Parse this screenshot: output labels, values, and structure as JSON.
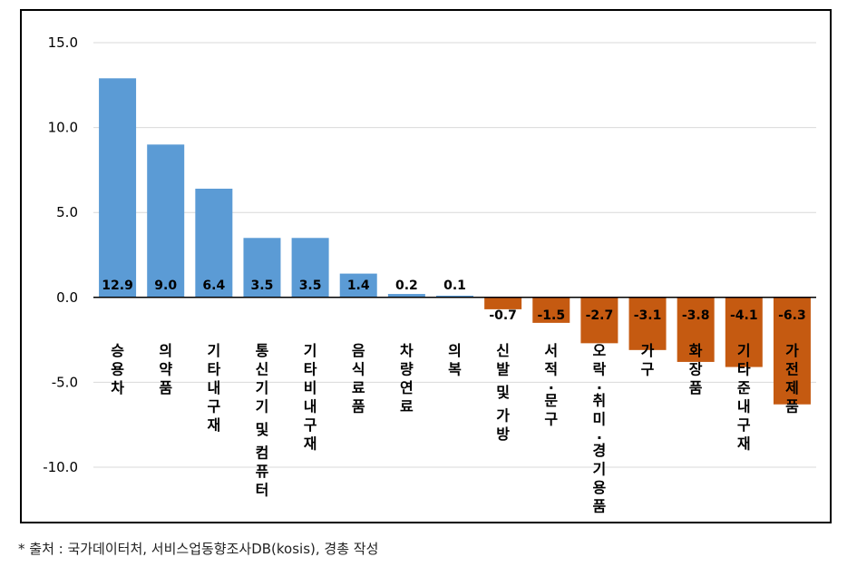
{
  "chart_data": {
    "type": "bar",
    "categories": [
      "승용차",
      "의약품",
      "기타내구재",
      "통신기기 및 컴퓨터",
      "기타비내구재",
      "음식료품",
      "차량연료",
      "의복",
      "신발 및 가방",
      "서적·문구",
      "오락·취미·경기용품",
      "가구",
      "화장품",
      "기타준내구재",
      "가전제품"
    ],
    "values": [
      12.9,
      9.0,
      6.4,
      3.5,
      3.5,
      1.4,
      0.2,
      0.1,
      -0.7,
      -1.5,
      -2.7,
      -3.1,
      -3.8,
      -4.1,
      -6.3
    ],
    "value_labels": [
      "12.9",
      "9.0",
      "6.4",
      "3.5",
      "3.5",
      "1.4",
      "0.2",
      "0.1",
      "-0.7",
      "-1.5",
      "-2.7",
      "-3.1",
      "-3.8",
      "-4.1",
      "-6.3"
    ],
    "yticks": [
      "15.0",
      "10.0",
      "5.0",
      "0.0",
      "-5.0",
      "-10.0"
    ],
    "ylim": [
      -10,
      15
    ],
    "grid": true,
    "colors": {
      "positive": "#5B9BD5",
      "negative": "#C55A11",
      "grid": "#D9D9D9",
      "zero_line": "#000000"
    },
    "title": "",
    "xlabel": "",
    "ylabel": ""
  },
  "source_note": "* 출처 : 국가데이터처, 서비스업동향조사DB(kosis), 경총 작성"
}
